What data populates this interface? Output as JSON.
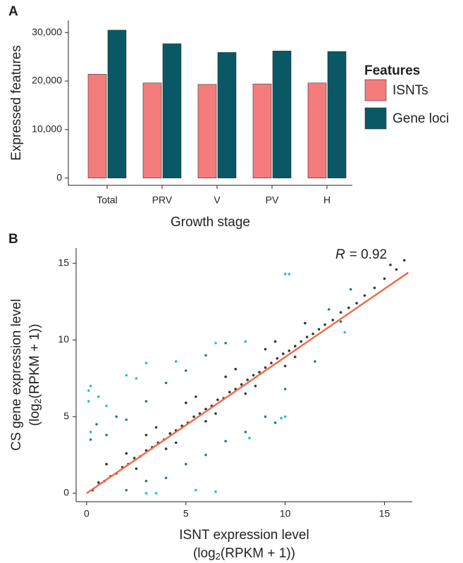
{
  "chart_data": [
    {
      "type": "bar",
      "panel": "A",
      "categories": [
        "Total",
        "PRV",
        "V",
        "PV",
        "H"
      ],
      "series": [
        {
          "name": "ISNTs",
          "color": "#f47c7c",
          "values": [
            21400,
            19600,
            19300,
            19400,
            19600
          ]
        },
        {
          "name": "Gene loci",
          "color": "#0a5866",
          "values": [
            30500,
            27700,
            25900,
            26200,
            26100
          ]
        }
      ],
      "ylim": [
        -1500,
        32500
      ],
      "yticks": [
        0,
        {
          "value": 10000,
          "label": "10,000"
        },
        {
          "value": 20000,
          "label": "20,000"
        },
        {
          "value": 30000,
          "label": "30,000"
        }
      ],
      "x_label": "Growth stage",
      "y_label": "Expressed features",
      "legend_title": "Features",
      "legend": "right"
    },
    {
      "type": "scatter",
      "panel": "B",
      "series": [
        {
          "color": "#2b3a3b",
          "x": [
            0.3,
            0.6,
            0.9,
            1.2,
            1.5,
            1.8,
            2.1,
            2.4,
            2.7,
            3.0,
            3.3,
            3.6,
            3.9,
            4.2,
            4.5,
            4.8,
            5.1,
            5.4,
            5.7,
            6.0,
            6.3,
            6.6,
            6.9,
            7.2,
            7.5,
            7.8,
            8.1,
            8.4,
            8.7,
            9.0,
            9.3,
            9.6,
            9.9,
            10.2,
            10.5,
            10.8,
            11.1,
            11.4,
            11.7,
            12.0,
            12.4,
            12.8,
            13.2,
            13.6,
            14.0,
            14.5,
            15.0,
            15.6,
            16.0,
            15.3,
            2.0,
            3.0,
            4.0,
            5.0,
            6.0,
            7.0,
            8.0,
            9.0,
            10.0,
            11.0,
            1.0,
            2.5,
            3.5,
            4.5,
            5.5,
            6.5,
            7.5,
            8.5,
            9.5,
            10.5
          ],
          "y": [
            0.2,
            0.7,
            0.8,
            1.1,
            1.3,
            1.7,
            1.9,
            2.3,
            2.4,
            2.8,
            3.0,
            3.3,
            3.5,
            3.9,
            4.1,
            4.4,
            4.6,
            5.0,
            5.2,
            5.5,
            5.7,
            6.1,
            6.2,
            6.6,
            6.8,
            7.1,
            7.4,
            7.7,
            7.9,
            8.2,
            8.5,
            8.8,
            9.1,
            9.3,
            9.6,
            9.9,
            10.2,
            10.4,
            10.7,
            11.0,
            11.3,
            11.8,
            12.1,
            12.4,
            12.9,
            13.4,
            14.0,
            14.6,
            15.2,
            14.9,
            2.6,
            3.8,
            2.9,
            5.9,
            4.7,
            7.6,
            6.5,
            9.4,
            8.3,
            11.1,
            1.9,
            1.6,
            4.3,
            3.3,
            6.3,
            5.2,
            8.1,
            7.0,
            9.9,
            8.9
          ]
        },
        {
          "color": "#1f7f86",
          "x": [
            0.2,
            0.5,
            1.0,
            1.5,
            2.0,
            3.0,
            4.0,
            5.0,
            6.0,
            7.0,
            2.0,
            3.0,
            4.0,
            5.0,
            6.0,
            7.0,
            8.0,
            9.0,
            9.5,
            10.0,
            11.5,
            12.8,
            13.3,
            12.2
          ],
          "y": [
            3.5,
            4.5,
            3.8,
            5.0,
            4.8,
            6.0,
            7.2,
            8.0,
            9.0,
            9.8,
            0.2,
            0.8,
            1.0,
            1.9,
            2.5,
            3.4,
            4.0,
            5.0,
            4.6,
            6.8,
            8.6,
            11.2,
            13.3,
            12.0
          ]
        },
        {
          "color": "#19c4c8",
          "x": [
            0.1,
            0.1,
            0.2,
            2.0,
            2.5,
            3.0,
            4.5,
            0.6,
            10.0,
            10.2,
            6.5,
            8.0,
            3.0,
            3.5,
            6.5,
            5.5,
            10.0,
            9.8,
            13.0,
            8.2,
            0.2,
            1.0
          ],
          "y": [
            6.7,
            6.0,
            7.0,
            7.7,
            7.5,
            8.5,
            8.6,
            6.3,
            14.3,
            14.3,
            9.8,
            9.9,
            0.0,
            0.0,
            0.1,
            0.2,
            5.0,
            4.9,
            10.5,
            3.6,
            4.0,
            5.7
          ]
        }
      ],
      "fit": {
        "x": [
          0,
          16.2
        ],
        "y": [
          0,
          14.4
        ],
        "color": "#f26b4b"
      },
      "annotation": [
        "R",
        "= 0.92"
      ],
      "xlim": [
        -0.53,
        16.4
      ],
      "ylim": [
        -0.55,
        16.0
      ],
      "xticks": [
        0,
        5,
        10,
        15
      ],
      "yticks": [
        0,
        5,
        10,
        15
      ],
      "x_label": {
        "line1": "ISNT expression level",
        "line2": [
          "(log",
          "2",
          "(RPKM + 1))"
        ]
      },
      "y_label": {
        "line1": "CS gene expression level",
        "line2": [
          "(log",
          "2",
          "(RPKM + 1))"
        ]
      }
    }
  ]
}
